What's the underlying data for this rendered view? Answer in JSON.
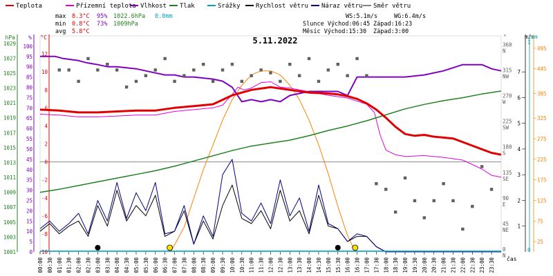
{
  "legend": [
    {
      "label": "Teplota",
      "color": "#e00000"
    },
    {
      "label": "Přízemní teplota",
      "color": "#e000e0"
    },
    {
      "label": "Vlhkost",
      "color": "#8000c0"
    },
    {
      "label": "Tlak",
      "color": "#208020"
    },
    {
      "label": "Srážky",
      "color": "#00a0c0"
    },
    {
      "label": "Rychlost větru",
      "color": "#000000"
    },
    {
      "label": "Náraz větru",
      "color": "#000080"
    },
    {
      "label": "Směr větru",
      "color": "#808080"
    }
  ],
  "stats": {
    "max_label": "max",
    "min_label": "min",
    "avg_label": "avg",
    "max_temp": "8.3°C",
    "max_hum": "95%",
    "max_press": "1022.6hPa",
    "max_rain": "0.0mm",
    "min_temp": "0.8°C",
    "min_hum": "73%",
    "min_press": "1009hPa",
    "avg_temp": "5.8°C",
    "wind": "WS:5.1m/s",
    "gust": "WG:6.4m/s",
    "sun": "Slunce Východ:06:45",
    "sun_set": "Západ:16:23",
    "moon": "Měsíc  Východ:15:30",
    "moon_set": "Západ:3:00"
  },
  "date": "5.11.2022",
  "axis_units": {
    "press": "hPa",
    "hum": "%",
    "temp": "°C",
    "dir": "°",
    "wind": "m/s",
    "rain": "mm",
    "time": "čas"
  },
  "chart_data": {
    "type": "line",
    "title": "5.11.2022",
    "x_unit": "hour",
    "x_range": [
      0,
      24
    ],
    "x_ticks": [
      "00:00",
      "00:30",
      "01:00",
      "01:30",
      "02:00",
      "02:30",
      "03:00",
      "03:30",
      "04:00",
      "04:30",
      "05:00",
      "05:30",
      "06:00",
      "06:30",
      "07:00",
      "07:30",
      "08:00",
      "08:30",
      "09:00",
      "09:30",
      "10:00",
      "10:30",
      "11:00",
      "11:30",
      "12:00",
      "12:30",
      "13:00",
      "13:30",
      "14:00",
      "14:30",
      "15:00",
      "15:30",
      "16:00",
      "16:30",
      "17:00",
      "17:30",
      "18:00",
      "18:30",
      "19:00",
      "19:30",
      "20:00",
      "20:30",
      "21:00",
      "21:30",
      "22:00",
      "22:30",
      "23:00",
      "23:30"
    ],
    "axes": {
      "temp": {
        "range": [
          -10,
          14
        ],
        "ticks": [
          -10,
          -8,
          -6,
          -4,
          -2,
          0,
          2,
          4,
          6,
          8,
          10,
          12
        ]
      },
      "hum": {
        "range": [
          0,
          105
        ],
        "ticks": [
          0,
          5,
          10,
          15,
          20,
          25,
          30,
          35,
          40,
          45,
          50,
          55,
          60,
          65,
          70,
          75,
          80,
          85,
          90,
          95,
          100
        ]
      },
      "press": {
        "range": [
          1001,
          1030
        ],
        "ticks": [
          1001,
          1003,
          1005,
          1007,
          1009,
          1011,
          1013,
          1015,
          1017,
          1019,
          1021,
          1023,
          1025,
          1027,
          1029
        ]
      },
      "dir": {
        "range": [
          0,
          380
        ],
        "ticks": [
          {
            "v": 0,
            "l": "N"
          },
          {
            "v": 45,
            "l": "NE"
          },
          {
            "v": 90,
            "l": "E"
          },
          {
            "v": 135,
            "l": "SE"
          },
          {
            "v": 180,
            "l": "S"
          },
          {
            "v": 225,
            "l": "SW"
          },
          {
            "v": 270,
            "l": "W"
          },
          {
            "v": 315,
            "l": "NW"
          },
          {
            "v": 360,
            "l": "N"
          }
        ]
      },
      "wind": {
        "range": [
          0,
          8.4
        ],
        "ticks": [
          1,
          2,
          3,
          4,
          5,
          6,
          7
        ]
      },
      "rain": {
        "range": [
          0,
          0.5
        ],
        "ticks": [
          0,
          1
        ]
      },
      "rad": {
        "range": [
          0,
          525
        ],
        "ticks": [
          25,
          75,
          125,
          175,
          225,
          275,
          325,
          385,
          445,
          495
        ]
      }
    },
    "series": [
      {
        "name": "Teplota",
        "axis": "temp",
        "color": "#e00000",
        "width": 3,
        "x": [
          0,
          1,
          2,
          3,
          4,
          5,
          6,
          7,
          8,
          9,
          10,
          11,
          12,
          13,
          14,
          15,
          15.5,
          16,
          16.5,
          17,
          17.5,
          18,
          18.5,
          19,
          19.5,
          20,
          20.5,
          21,
          21.5,
          22,
          22.5,
          23,
          23.5,
          24
        ],
        "y": [
          5.8,
          5.7,
          5.5,
          5.5,
          5.6,
          5.7,
          5.7,
          6.0,
          6.2,
          6.4,
          7.4,
          8.0,
          8.3,
          8.0,
          7.7,
          7.6,
          7.5,
          7.3,
          7.0,
          6.5,
          5.8,
          4.9,
          3.9,
          3.1,
          2.9,
          3.0,
          2.8,
          2.7,
          2.6,
          2.2,
          1.8,
          1.4,
          1.0,
          0.8
        ]
      },
      {
        "name": "Přízemní teplota",
        "axis": "temp",
        "color": "#e000e0",
        "width": 1,
        "x": [
          0,
          1,
          2,
          3,
          4,
          5,
          6,
          7,
          8,
          9,
          9.5,
          10,
          10.3,
          10.6,
          11,
          11.5,
          12,
          12.5,
          13,
          14,
          15,
          16,
          17,
          17.4,
          17.7,
          18,
          18.5,
          19,
          20,
          21,
          22,
          23,
          23.5,
          24
        ],
        "y": [
          5.3,
          5.2,
          5.0,
          5.0,
          5.1,
          5.2,
          5.2,
          5.6,
          5.8,
          6.0,
          6.3,
          7.5,
          8.3,
          8.0,
          8.2,
          8.8,
          8.9,
          8.3,
          8.2,
          7.8,
          7.4,
          7.1,
          6.4,
          5.5,
          3.0,
          1.3,
          0.8,
          0.6,
          0.7,
          0.5,
          0.2,
          -0.8,
          -1.5,
          -1.7
        ]
      },
      {
        "name": "Vlhkost",
        "axis": "hum",
        "color": "#8000c0",
        "width": 2,
        "x": [
          0,
          0.8,
          1.2,
          2.0,
          2.4,
          3.0,
          3.5,
          4.0,
          5.0,
          5.5,
          6.0,
          6.5,
          7.0,
          7.5,
          8.0,
          9.0,
          9.5,
          10.0,
          10.5,
          11,
          11.5,
          12,
          12.5,
          13,
          14,
          15,
          15.5,
          16,
          16.5,
          17,
          18,
          19,
          20,
          21,
          22,
          23,
          23.5,
          24
        ],
        "y": [
          95,
          95,
          94,
          93,
          92,
          91,
          90,
          90,
          89,
          88,
          87,
          86,
          86,
          85,
          85,
          84,
          83,
          80,
          73,
          74,
          73,
          74,
          73,
          76,
          78,
          78,
          78,
          76,
          85,
          85,
          85,
          85,
          86,
          88,
          91,
          91,
          89,
          88
        ]
      },
      {
        "name": "Tlak",
        "axis": "press",
        "color": "#208020",
        "width": 1.5,
        "x": [
          0,
          1,
          2,
          3,
          4,
          5,
          6,
          7,
          8,
          9,
          10,
          11,
          12,
          13,
          14,
          15,
          16,
          17,
          18,
          19,
          20,
          21,
          22,
          23,
          24
        ],
        "y": [
          1009.0,
          1009.4,
          1009.9,
          1010.4,
          1010.9,
          1011.4,
          1011.9,
          1012.5,
          1013.2,
          1013.9,
          1014.6,
          1015.2,
          1015.6,
          1016.0,
          1016.6,
          1017.3,
          1017.9,
          1018.6,
          1019.4,
          1020.2,
          1020.8,
          1021.3,
          1021.7,
          1022.2,
          1022.6
        ]
      },
      {
        "name": "Rychlost větru",
        "axis": "wind",
        "color": "#000000",
        "width": 1,
        "x": [
          0,
          0.5,
          1,
          1.5,
          2,
          2.5,
          3,
          3.5,
          4,
          4.5,
          5,
          5.5,
          6,
          6.5,
          7,
          7.5,
          8,
          8.5,
          9,
          9.5,
          10,
          10.5,
          11,
          11.5,
          12,
          12.5,
          13,
          13.5,
          14,
          14.5,
          15,
          15.5,
          16,
          16.5,
          17,
          17.5,
          18,
          20,
          24
        ],
        "y": [
          0.8,
          1.1,
          0.7,
          1.0,
          1.2,
          0.6,
          1.8,
          1.0,
          2.4,
          1.2,
          1.8,
          1.4,
          2.2,
          0.6,
          0.8,
          1.6,
          0.3,
          1.2,
          0.5,
          1.8,
          2.6,
          1.3,
          1.1,
          1.6,
          0.9,
          2.4,
          1.2,
          1.6,
          0.7,
          2.2,
          1.0,
          0.9,
          0.4,
          0.6,
          0.6,
          0.2,
          0.0,
          0.0,
          0.0
        ]
      },
      {
        "name": "Náraz větru",
        "axis": "wind",
        "color": "#000080",
        "width": 1,
        "x": [
          0,
          0.5,
          1,
          1.5,
          2,
          2.5,
          3,
          3.5,
          4,
          4.5,
          5,
          5.5,
          6,
          6.5,
          7,
          7.5,
          8,
          8.5,
          9,
          9.5,
          10,
          10.5,
          11,
          11.5,
          12,
          12.5,
          13,
          13.5,
          14,
          14.5,
          15,
          15.5,
          16,
          16.5,
          17,
          17.5,
          18,
          20,
          24
        ],
        "y": [
          0.9,
          1.2,
          0.8,
          1.1,
          1.5,
          0.7,
          2.0,
          1.2,
          2.7,
          1.3,
          2.3,
          1.6,
          2.7,
          0.7,
          0.8,
          1.8,
          0.3,
          1.4,
          0.6,
          3.0,
          3.6,
          1.5,
          1.2,
          1.9,
          1.1,
          2.8,
          1.4,
          2.1,
          0.8,
          2.6,
          1.1,
          0.9,
          0.4,
          0.7,
          0.6,
          0.2,
          0.0,
          0.0,
          0.0
        ]
      },
      {
        "name": "Směr větru",
        "axis": "dir",
        "color": "#606060",
        "type": "scatter",
        "x": [
          1,
          1.5,
          2,
          2.5,
          3,
          3.5,
          4,
          4.5,
          5,
          5.5,
          6,
          6.5,
          7,
          7.5,
          8,
          8.5,
          9,
          9.5,
          10,
          10.5,
          11,
          11.5,
          12,
          12.5,
          13,
          13.5,
          14,
          14.5,
          15,
          15.5,
          16,
          16.5,
          17,
          17.5,
          18,
          18.5,
          19,
          19.5,
          20,
          20.5,
          21,
          21.5,
          22,
          22.5,
          23,
          23.5
        ],
        "y": [
          320,
          320,
          300,
          340,
          320,
          330,
          320,
          290,
          300,
          310,
          320,
          340,
          300,
          310,
          320,
          330,
          300,
          320,
          330,
          300,
          310,
          320,
          315,
          300,
          330,
          310,
          340,
          300,
          320,
          330,
          310,
          340,
          310,
          120,
          110,
          70,
          130,
          90,
          60,
          90,
          120,
          90,
          40,
          80,
          150,
          110
        ]
      },
      {
        "name": "Radiace",
        "axis": "rad",
        "color": "#ff8000",
        "width": 1,
        "x": [
          6.8,
          7.5,
          8,
          8.5,
          9,
          9.5,
          10,
          10.5,
          11,
          11.5,
          12,
          12.5,
          13,
          13.5,
          14,
          14.5,
          15,
          15.5,
          16,
          16.4
        ],
        "y": [
          0,
          60,
          130,
          200,
          260,
          320,
          370,
          405,
          430,
          440,
          440,
          430,
          405,
          370,
          320,
          260,
          190,
          110,
          40,
          0
        ]
      }
    ]
  }
}
